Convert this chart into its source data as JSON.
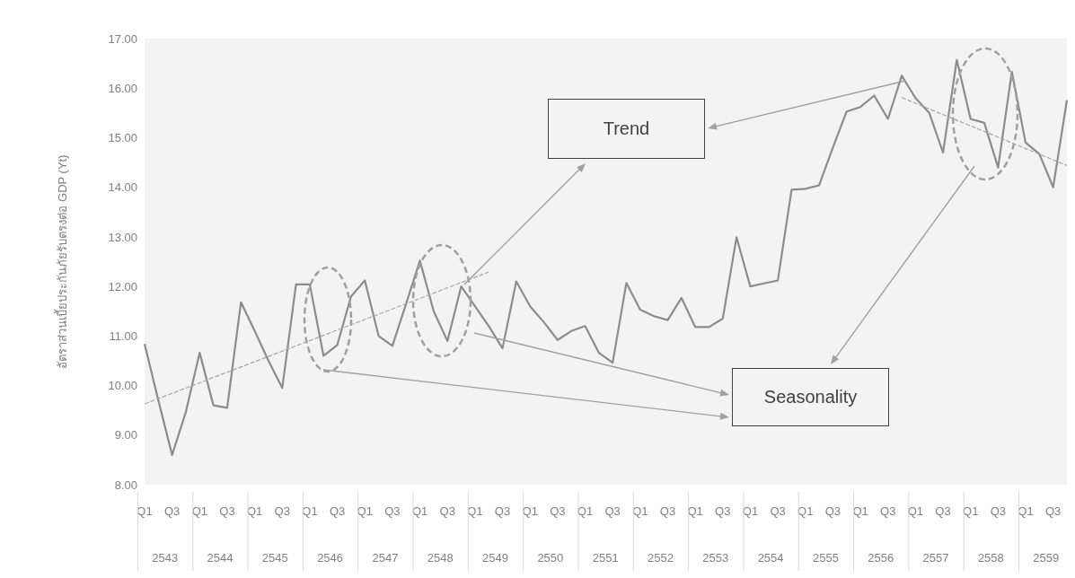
{
  "chart_data": {
    "type": "line",
    "ylabel": "อัตราส่วนเบี้ยประกันภัยรับตรงต่อ GDP (Yt)",
    "categories": [
      "Q1",
      null,
      "Q3",
      null,
      "Q1",
      null,
      "Q3",
      null,
      "Q1",
      null,
      "Q3",
      null,
      "Q1",
      null,
      "Q3",
      null,
      "Q1",
      null,
      "Q3",
      null,
      "Q1",
      null,
      "Q3",
      null,
      "Q1",
      null,
      "Q3",
      null,
      "Q1",
      null,
      "Q3",
      null,
      "Q1",
      null,
      "Q3",
      null,
      "Q1",
      null,
      "Q3",
      null,
      "Q1",
      null,
      "Q3",
      null,
      "Q1",
      null,
      "Q3",
      null,
      "Q1",
      null,
      "Q3",
      null,
      "Q1",
      null,
      "Q3",
      null,
      "Q1",
      null,
      "Q3",
      null,
      "Q1",
      null,
      "Q3",
      null,
      "Q1",
      null,
      "Q3",
      null
    ],
    "series": [
      {
        "color": "#8c8c8c",
        "line_style": "solid",
        "values": [
          10.84,
          9.7,
          8.6,
          9.47,
          10.66,
          9.6,
          9.55,
          11.68,
          11.1,
          10.5,
          9.95,
          12.04,
          12.04,
          10.6,
          10.82,
          11.8,
          12.12,
          11.0,
          10.8,
          11.65,
          12.52,
          11.5,
          10.9,
          12.0,
          11.6,
          11.2,
          10.75,
          12.1,
          11.6,
          11.28,
          10.92,
          11.1,
          11.2,
          10.66,
          10.46,
          12.07,
          11.53,
          11.4,
          11.32,
          11.77,
          11.18,
          11.18,
          11.35,
          12.99,
          12.0,
          12.06,
          12.12,
          13.95,
          13.97,
          14.04,
          14.8,
          15.53,
          15.62,
          15.85,
          15.38,
          16.25,
          15.8,
          15.5,
          14.7,
          16.57,
          15.38,
          15.3,
          14.4,
          16.33,
          14.9,
          14.67,
          14.0,
          15.76
        ]
      },
      {
        "type": "line",
        "color": "#a6a6a6",
        "line_style": "dashed",
        "values": [
          9.63,
          null,
          null,
          null,
          null,
          null,
          null,
          null,
          null,
          null,
          null,
          null,
          null,
          null,
          null,
          null,
          null,
          null,
          null,
          null,
          null,
          null,
          null,
          null,
          null,
          12.29,
          null,
          null,
          null,
          null,
          null,
          null,
          null,
          null,
          null,
          null,
          null,
          null,
          null,
          null,
          null,
          null,
          null,
          null,
          null,
          null,
          null,
          null,
          null,
          null,
          null,
          null,
          null,
          null,
          null,
          null,
          null,
          null,
          null,
          null,
          null,
          null,
          null,
          null,
          null,
          null,
          null,
          null
        ]
      },
      {
        "type": "line",
        "color": "#a6a6a6",
        "line_style": "dashed",
        "values": [
          null,
          null,
          null,
          null,
          null,
          null,
          null,
          null,
          null,
          null,
          null,
          null,
          null,
          null,
          null,
          null,
          null,
          null,
          null,
          null,
          null,
          null,
          null,
          null,
          null,
          null,
          null,
          null,
          null,
          null,
          null,
          null,
          null,
          null,
          null,
          null,
          null,
          null,
          null,
          null,
          null,
          null,
          null,
          null,
          null,
          null,
          null,
          null,
          null,
          null,
          null,
          null,
          null,
          null,
          null,
          15.81,
          null,
          null,
          null,
          null,
          null,
          null,
          null,
          null,
          null,
          null,
          null,
          14.44
        ]
      }
    ],
    "ylim": [
      8,
      17
    ],
    "yticks": [
      {
        "value": 8,
        "label": "8.00"
      },
      {
        "value": 9,
        "label": "9.00"
      },
      {
        "value": 10,
        "label": "10.00"
      },
      {
        "value": 11,
        "label": "11.00"
      },
      {
        "value": 12,
        "label": "12.00"
      },
      {
        "value": 13,
        "label": "13.00"
      },
      {
        "value": 14,
        "label": "14.00"
      },
      {
        "value": 15,
        "label": "15.00"
      },
      {
        "value": 16,
        "label": "16.00"
      },
      {
        "value": 17,
        "label": "17.00"
      }
    ],
    "marker": "none",
    "annotations": [
      "Trend",
      "Seasonality",
      "2543",
      "2544",
      "2545",
      "2546",
      "2547",
      "2548",
      "2549",
      "2550",
      "2551",
      "2552",
      "2553",
      "2554",
      "2555",
      "2556",
      "2557",
      "2558",
      "2559"
    ]
  }
}
